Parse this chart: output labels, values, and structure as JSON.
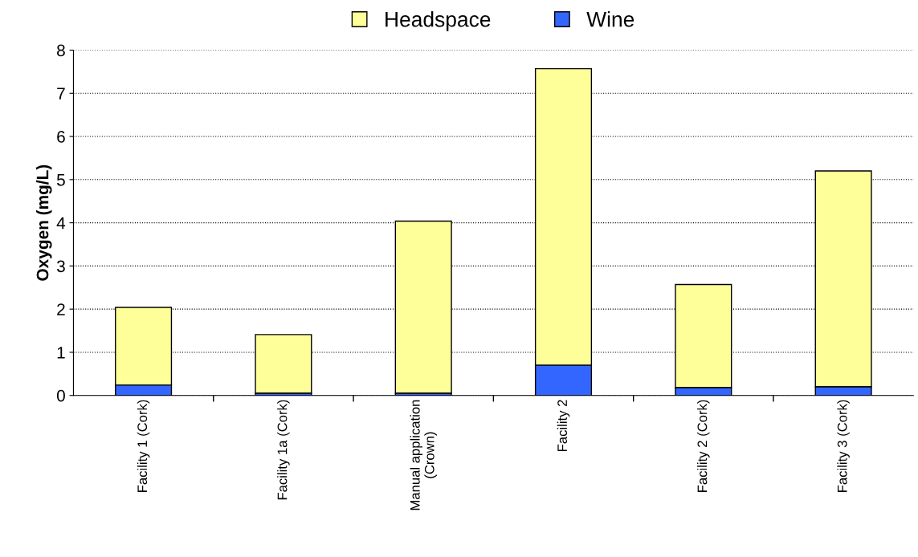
{
  "chart_data": {
    "type": "bar",
    "stacked": true,
    "ylabel": "Oxygen (mg/L)",
    "categories": [
      "Facility 1 (Cork)",
      "Facility 1a (Cork)",
      "Manual application\n(Crown)",
      "Facility 2",
      "Facility 2 (Cork)",
      "Facility 3 (Cork)"
    ],
    "series": [
      {
        "name": "Wine",
        "color": "#3366ff",
        "values": [
          0.24,
          0.05,
          0.05,
          0.7,
          0.18,
          0.2
        ]
      },
      {
        "name": "Headspace",
        "color": "#ffff99",
        "values": [
          1.8,
          1.36,
          3.99,
          6.87,
          2.39,
          5.0
        ]
      }
    ],
    "ylim": [
      0,
      8
    ],
    "yticks": [
      0,
      1,
      2,
      3,
      4,
      5,
      6,
      7,
      8
    ],
    "grid": "y",
    "legend": "top"
  }
}
